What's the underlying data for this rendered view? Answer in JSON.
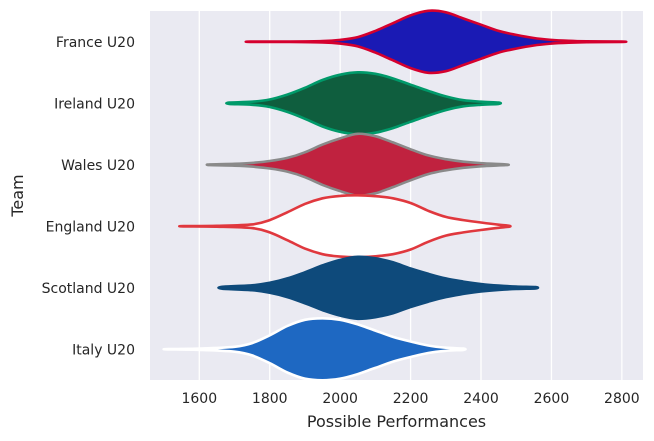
{
  "chart_data": {
    "type": "violin",
    "orientation": "horizontal",
    "xlabel": "Possible Performances",
    "ylabel": "Team",
    "xlim": [
      1460,
      2860
    ],
    "xticks": [
      1600,
      1800,
      2000,
      2200,
      2400,
      2600,
      2800
    ],
    "grid": true,
    "categories": [
      "France U20",
      "Ireland U20",
      "Wales U20",
      "England U20",
      "Scotland U20",
      "Italy U20"
    ],
    "series": [
      {
        "name": "France U20",
        "fill": "#1a1ab4",
        "stroke": "#d5002e",
        "range": [
          1745,
          2800
        ],
        "profile": [
          [
            1745,
            0.004
          ],
          [
            1850,
            0.006
          ],
          [
            1950,
            0.02
          ],
          [
            2000,
            0.06
          ],
          [
            2050,
            0.15
          ],
          [
            2100,
            0.35
          ],
          [
            2150,
            0.6
          ],
          [
            2200,
            0.85
          ],
          [
            2250,
            1.0
          ],
          [
            2300,
            0.95
          ],
          [
            2350,
            0.75
          ],
          [
            2400,
            0.55
          ],
          [
            2450,
            0.35
          ],
          [
            2500,
            0.22
          ],
          [
            2550,
            0.12
          ],
          [
            2600,
            0.06
          ],
          [
            2650,
            0.03
          ],
          [
            2700,
            0.015
          ],
          [
            2800,
            0.004
          ]
        ]
      },
      {
        "name": "Ireland U20",
        "fill": "#0f5e3e",
        "stroke": "#009a6a",
        "range": [
          1685,
          2450
        ],
        "profile": [
          [
            1685,
            0.02
          ],
          [
            1750,
            0.05
          ],
          [
            1800,
            0.12
          ],
          [
            1850,
            0.28
          ],
          [
            1900,
            0.5
          ],
          [
            1950,
            0.75
          ],
          [
            2000,
            0.92
          ],
          [
            2050,
            1.0
          ],
          [
            2100,
            0.95
          ],
          [
            2150,
            0.8
          ],
          [
            2200,
            0.6
          ],
          [
            2250,
            0.4
          ],
          [
            2300,
            0.22
          ],
          [
            2350,
            0.1
          ],
          [
            2400,
            0.05
          ],
          [
            2450,
            0.02
          ]
        ]
      },
      {
        "name": "Wales U20",
        "fill": "#c0223f",
        "stroke": "#8a8a8a",
        "range": [
          1630,
          2470
        ],
        "profile": [
          [
            1630,
            0.01
          ],
          [
            1700,
            0.03
          ],
          [
            1750,
            0.06
          ],
          [
            1800,
            0.12
          ],
          [
            1850,
            0.22
          ],
          [
            1900,
            0.4
          ],
          [
            1950,
            0.65
          ],
          [
            2000,
            0.85
          ],
          [
            2050,
            1.0
          ],
          [
            2100,
            0.92
          ],
          [
            2150,
            0.72
          ],
          [
            2200,
            0.5
          ],
          [
            2250,
            0.3
          ],
          [
            2300,
            0.18
          ],
          [
            2350,
            0.1
          ],
          [
            2400,
            0.05
          ],
          [
            2470,
            0.01
          ]
        ]
      },
      {
        "name": "England U20",
        "fill": "#ffffff",
        "stroke": "#e0383e",
        "range": [
          1555,
          2480
        ],
        "profile": [
          [
            1555,
            0.005
          ],
          [
            1650,
            0.015
          ],
          [
            1750,
            0.06
          ],
          [
            1800,
            0.2
          ],
          [
            1850,
            0.45
          ],
          [
            1900,
            0.72
          ],
          [
            1950,
            0.9
          ],
          [
            2000,
            0.98
          ],
          [
            2050,
            1.0
          ],
          [
            2100,
            0.97
          ],
          [
            2150,
            0.9
          ],
          [
            2200,
            0.75
          ],
          [
            2250,
            0.5
          ],
          [
            2300,
            0.3
          ],
          [
            2350,
            0.2
          ],
          [
            2400,
            0.12
          ],
          [
            2450,
            0.05
          ],
          [
            2480,
            0.015
          ]
        ]
      },
      {
        "name": "Scotland U20",
        "fill": "#0e4a7b",
        "stroke": "#0e4a7b",
        "range": [
          1665,
          2555
        ],
        "profile": [
          [
            1665,
            0.03
          ],
          [
            1750,
            0.08
          ],
          [
            1800,
            0.16
          ],
          [
            1850,
            0.3
          ],
          [
            1900,
            0.5
          ],
          [
            1950,
            0.72
          ],
          [
            2000,
            0.9
          ],
          [
            2050,
            1.0
          ],
          [
            2100,
            0.95
          ],
          [
            2150,
            0.82
          ],
          [
            2200,
            0.62
          ],
          [
            2250,
            0.45
          ],
          [
            2300,
            0.3
          ],
          [
            2350,
            0.2
          ],
          [
            2400,
            0.12
          ],
          [
            2450,
            0.07
          ],
          [
            2500,
            0.04
          ],
          [
            2555,
            0.02
          ]
        ]
      },
      {
        "name": "Italy U20",
        "fill": "#1e68c2",
        "stroke": "#ffffff",
        "range": [
          1510,
          2350
        ],
        "profile": [
          [
            1510,
            0.005
          ],
          [
            1600,
            0.02
          ],
          [
            1700,
            0.08
          ],
          [
            1750,
            0.2
          ],
          [
            1800,
            0.45
          ],
          [
            1850,
            0.75
          ],
          [
            1900,
            0.95
          ],
          [
            1950,
            1.0
          ],
          [
            2000,
            0.95
          ],
          [
            2050,
            0.8
          ],
          [
            2100,
            0.6
          ],
          [
            2150,
            0.4
          ],
          [
            2200,
            0.25
          ],
          [
            2250,
            0.12
          ],
          [
            2300,
            0.05
          ],
          [
            2350,
            0.02
          ]
        ]
      }
    ]
  },
  "colors": {
    "plot_background": "#eaeaf2",
    "grid": "#ffffff",
    "text": "#262626"
  }
}
